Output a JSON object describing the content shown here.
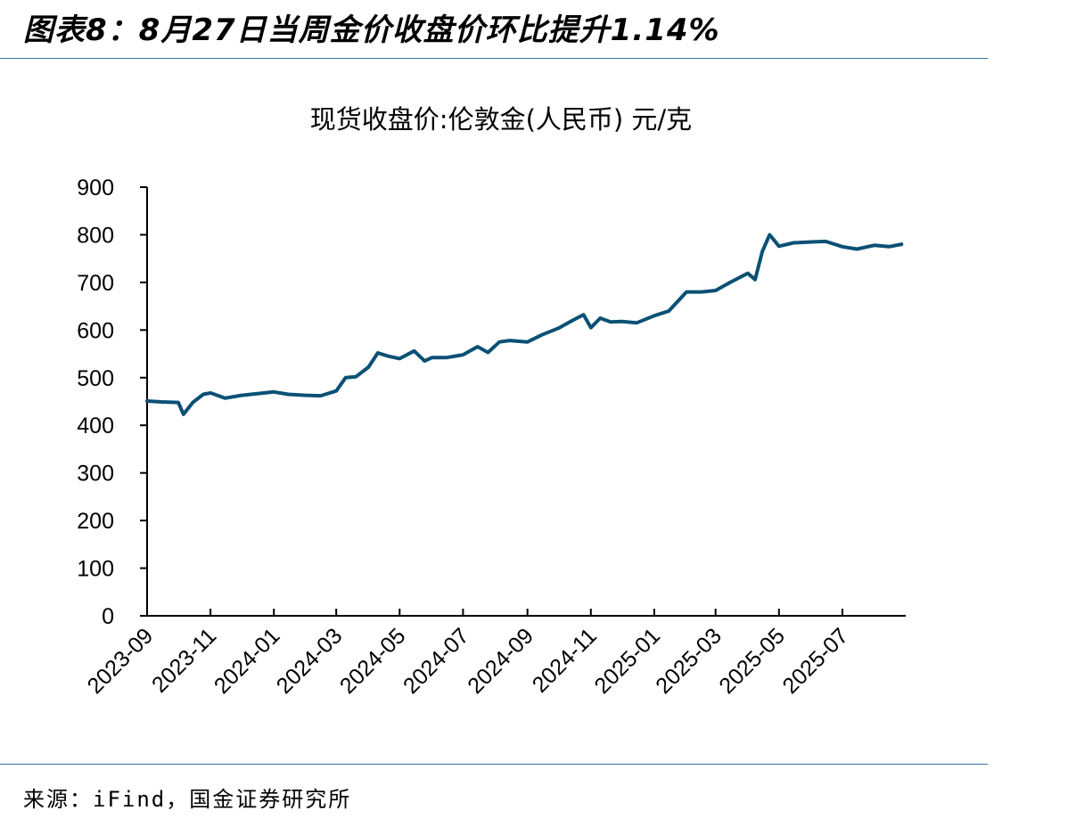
{
  "figure": {
    "title": "图表8：8月27日当周金价收盘价环比提升1.14%",
    "source": "来源：iFind，国金证券研究所"
  },
  "chart_data": {
    "type": "line",
    "title": "现货收盘价:伦敦金(人民币) 元/克",
    "xlabel": "",
    "ylabel": "",
    "ylim": [
      0,
      900
    ],
    "yticks": [
      "0",
      "100",
      "200",
      "300",
      "400",
      "500",
      "600",
      "700",
      "800",
      "900"
    ],
    "xticks": [
      "2023-09",
      "2023-11",
      "2024-01",
      "2024-03",
      "2024-05",
      "2024-07",
      "2024-09",
      "2024-11",
      "2025-01",
      "2025-03",
      "2025-05",
      "2025-07"
    ],
    "grid": false,
    "legend": "none",
    "color": "#0b5075",
    "series": [
      {
        "x": [
          "2023-09-01",
          "2023-09-15",
          "2023-10-01",
          "2023-10-06",
          "2023-10-15",
          "2023-10-25",
          "2023-11-01",
          "2023-11-15",
          "2023-12-01",
          "2023-12-15",
          "2024-01-01",
          "2024-01-15",
          "2024-02-01",
          "2024-02-15",
          "2024-03-01",
          "2024-03-10",
          "2024-03-20",
          "2024-04-01",
          "2024-04-10",
          "2024-04-20",
          "2024-05-01",
          "2024-05-15",
          "2024-05-25",
          "2024-06-01",
          "2024-06-15",
          "2024-07-01",
          "2024-07-15",
          "2024-07-25",
          "2024-08-05",
          "2024-08-15",
          "2024-09-01",
          "2024-09-15",
          "2024-10-01",
          "2024-10-15",
          "2024-10-25",
          "2024-11-01",
          "2024-11-10",
          "2024-11-20",
          "2024-12-01",
          "2024-12-15",
          "2025-01-01",
          "2025-01-15",
          "2025-02-01",
          "2025-02-15",
          "2025-03-01",
          "2025-03-15",
          "2025-04-01",
          "2025-04-08",
          "2025-04-15",
          "2025-04-22",
          "2025-05-01",
          "2025-05-15",
          "2025-06-01",
          "2025-06-15",
          "2025-07-01",
          "2025-07-15",
          "2025-08-01",
          "2025-08-15",
          "2025-08-27"
        ],
        "values": [
          451,
          449,
          448,
          423,
          448,
          465,
          468,
          457,
          463,
          466,
          470,
          465,
          463,
          462,
          472,
          500,
          502,
          522,
          552,
          545,
          540,
          556,
          535,
          542,
          542,
          548,
          565,
          553,
          575,
          578,
          575,
          590,
          604,
          621,
          632,
          605,
          625,
          617,
          618,
          615,
          630,
          640,
          680,
          680,
          683,
          700,
          719,
          706,
          765,
          800,
          776,
          783,
          785,
          786,
          775,
          770,
          778,
          775,
          780
        ]
      }
    ]
  }
}
